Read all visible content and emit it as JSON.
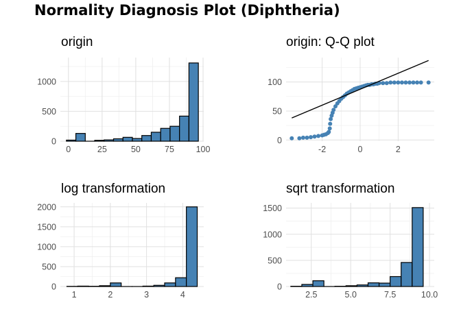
{
  "title": "Normality Diagnosis Plot (Diphtheria)",
  "colors": {
    "fill": "#4682B4",
    "outline": "#000000",
    "grid": "#e0e0e0",
    "text": "#4d4d4d"
  },
  "chart_data": [
    {
      "id": "origin",
      "type": "bar",
      "subtype": "histogram",
      "title": "origin",
      "xlabel": "",
      "ylabel": "",
      "bins": [
        [
          -1.5,
          5.5,
          18
        ],
        [
          5.5,
          12.5,
          130
        ],
        [
          12.5,
          19.5,
          0
        ],
        [
          19.5,
          26.5,
          15
        ],
        [
          26.5,
          33.5,
          22
        ],
        [
          33.5,
          40.5,
          40
        ],
        [
          40.5,
          47.5,
          65
        ],
        [
          47.5,
          54.5,
          45
        ],
        [
          54.5,
          61.5,
          95
        ],
        [
          61.5,
          68.5,
          150
        ],
        [
          68.5,
          75.5,
          215
        ],
        [
          75.5,
          82.5,
          250
        ],
        [
          82.5,
          89.5,
          420
        ],
        [
          89.5,
          96.5,
          1310
        ]
      ],
      "xlim": [
        -6,
        100.5
      ],
      "ylim": [
        0,
        1400
      ],
      "xticks": [
        0,
        25,
        50,
        75,
        100
      ],
      "yticks": [
        0,
        500,
        1000
      ],
      "grid": true
    },
    {
      "id": "qq",
      "type": "scatter",
      "subtype": "qq",
      "title": "origin: Q-Q plot",
      "xlabel": "",
      "ylabel": "",
      "points": [
        [
          -3.6,
          3
        ],
        [
          -3.2,
          3
        ],
        [
          -3.0,
          4
        ],
        [
          -2.8,
          4
        ],
        [
          -2.6,
          5
        ],
        [
          -2.4,
          6
        ],
        [
          -2.2,
          7
        ],
        [
          -2.0,
          8
        ],
        [
          -1.9,
          9
        ],
        [
          -1.8,
          10
        ],
        [
          -1.7,
          12
        ],
        [
          -1.65,
          14
        ],
        [
          -1.6,
          20
        ],
        [
          -1.58,
          28
        ],
        [
          -1.55,
          36
        ],
        [
          -1.5,
          42
        ],
        [
          -1.45,
          47
        ],
        [
          -1.4,
          52
        ],
        [
          -1.3,
          58
        ],
        [
          -1.2,
          63
        ],
        [
          -1.1,
          67
        ],
        [
          -1.0,
          71
        ],
        [
          -0.9,
          74
        ],
        [
          -0.8,
          77
        ],
        [
          -0.7,
          80
        ],
        [
          -0.6,
          82
        ],
        [
          -0.5,
          84
        ],
        [
          -0.4,
          86
        ],
        [
          -0.3,
          88
        ],
        [
          -0.2,
          89
        ],
        [
          -0.1,
          90
        ],
        [
          0.0,
          91
        ],
        [
          0.1,
          92
        ],
        [
          0.2,
          93
        ],
        [
          0.3,
          94
        ],
        [
          0.4,
          95
        ],
        [
          0.5,
          95
        ],
        [
          0.6,
          96
        ],
        [
          0.7,
          96
        ],
        [
          0.8,
          97
        ],
        [
          0.9,
          97
        ],
        [
          1.0,
          98
        ],
        [
          1.2,
          98
        ],
        [
          1.4,
          98
        ],
        [
          1.6,
          99
        ],
        [
          1.8,
          99
        ],
        [
          2.0,
          99
        ],
        [
          2.2,
          99
        ],
        [
          2.4,
          99
        ],
        [
          2.6,
          99
        ],
        [
          2.8,
          99
        ],
        [
          3.0,
          99
        ],
        [
          3.2,
          99
        ],
        [
          3.6,
          99
        ]
      ],
      "line": [
        [
          -3.6,
          38
        ],
        [
          3.6,
          137
        ]
      ],
      "xlim": [
        -3.9,
        3.9
      ],
      "ylim": [
        -2,
        142
      ],
      "xticks": [
        -2,
        0,
        2
      ],
      "yticks": [
        0,
        50,
        100
      ],
      "grid": true
    },
    {
      "id": "log",
      "type": "bar",
      "subtype": "histogram",
      "title": "log transformation",
      "xlabel": "",
      "ylabel": "",
      "bins": [
        [
          0.8,
          1.1,
          4
        ],
        [
          1.1,
          1.4,
          10
        ],
        [
          1.4,
          1.7,
          6
        ],
        [
          1.7,
          2.0,
          20
        ],
        [
          2.0,
          2.3,
          90
        ],
        [
          2.3,
          2.6,
          0
        ],
        [
          2.6,
          2.9,
          0
        ],
        [
          2.9,
          3.2,
          10
        ],
        [
          3.2,
          3.5,
          30
        ],
        [
          3.5,
          3.8,
          90
        ],
        [
          3.8,
          4.1,
          220
        ],
        [
          4.1,
          4.4,
          2000
        ]
      ],
      "xlim": [
        0.62,
        4.58
      ],
      "ylim": [
        0,
        2100
      ],
      "xticks": [
        1,
        2,
        3,
        4
      ],
      "yticks": [
        0,
        500,
        1000,
        1500,
        2000
      ],
      "grid": true
    },
    {
      "id": "sqrt",
      "type": "bar",
      "subtype": "histogram",
      "title": "sqrt transformation",
      "xlabel": "",
      "ylabel": "",
      "bins": [
        [
          1.2,
          1.9,
          5
        ],
        [
          1.9,
          2.6,
          40
        ],
        [
          2.6,
          3.3,
          110
        ],
        [
          3.3,
          4.0,
          0
        ],
        [
          4.0,
          4.7,
          5
        ],
        [
          4.7,
          5.4,
          15
        ],
        [
          5.4,
          6.1,
          30
        ],
        [
          6.1,
          6.8,
          70
        ],
        [
          6.8,
          7.5,
          65
        ],
        [
          7.5,
          8.2,
          190
        ],
        [
          8.2,
          8.9,
          460
        ],
        [
          8.9,
          9.6,
          1510
        ]
      ],
      "xlim": [
        0.9,
        10.3
      ],
      "ylim": [
        0,
        1600
      ],
      "xticks": [
        2.5,
        5.0,
        7.5,
        10.0
      ],
      "yticks": [
        0,
        500,
        1000,
        1500
      ],
      "grid": true
    }
  ]
}
